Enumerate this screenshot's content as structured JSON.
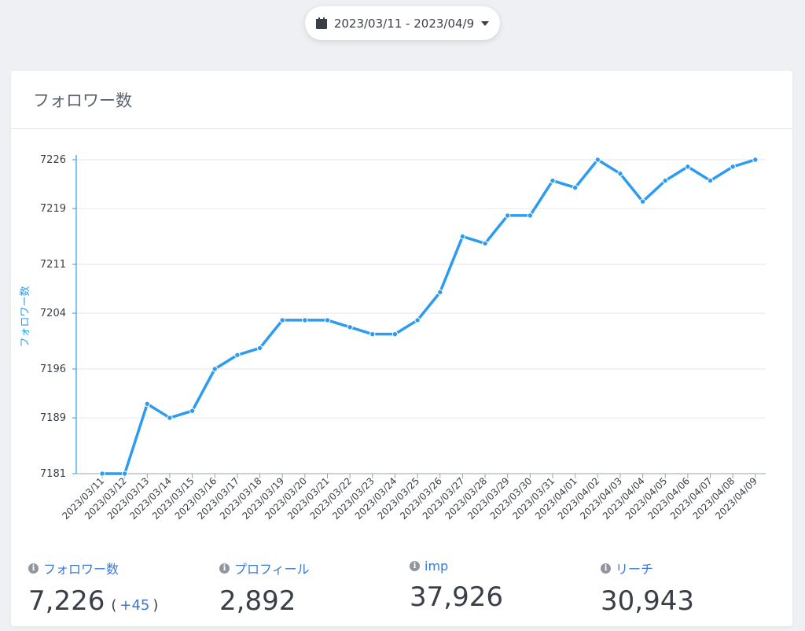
{
  "date_range": {
    "label": "2023/03/11 - 2023/04/9"
  },
  "card": {
    "title": "フォロワー数"
  },
  "stats": [
    {
      "label": "フォロワー数",
      "value": "7,226",
      "delta": "+45"
    },
    {
      "label": "プロフィール",
      "value": "2,892"
    },
    {
      "label": "imp",
      "value": "37,926"
    },
    {
      "label": "リーチ",
      "value": "30,943"
    }
  ],
  "chart_data": {
    "type": "line",
    "title": "",
    "xlabel": "",
    "ylabel": "フォロワー数",
    "ylim": [
      7181,
      7226
    ],
    "yticks": [
      7181,
      7189,
      7196,
      7204,
      7211,
      7219,
      7226
    ],
    "grid": true,
    "color": "#2d9cf0",
    "categories": [
      "2023/03/11",
      "2023/03/12",
      "2023/03/13",
      "2023/03/14",
      "2023/03/15",
      "2023/03/16",
      "2023/03/17",
      "2023/03/18",
      "2023/03/19",
      "2023/03/20",
      "2023/03/21",
      "2023/03/22",
      "2023/03/23",
      "2023/03/24",
      "2023/03/25",
      "2023/03/26",
      "2023/03/27",
      "2023/03/28",
      "2023/03/29",
      "2023/03/30",
      "2023/03/31",
      "2023/04/01",
      "2023/04/02",
      "2023/04/03",
      "2023/04/04",
      "2023/04/05",
      "2023/04/06",
      "2023/04/07",
      "2023/04/08",
      "2023/04/09"
    ],
    "values": [
      7181,
      7181,
      7191,
      7189,
      7190,
      7196,
      7198,
      7199,
      7203,
      7203,
      7203,
      7202,
      7201,
      7201,
      7203,
      7207,
      7215,
      7214,
      7218,
      7218,
      7223,
      7222,
      7226,
      7224,
      7220,
      7223,
      7225,
      7223,
      7225,
      7226
    ]
  }
}
